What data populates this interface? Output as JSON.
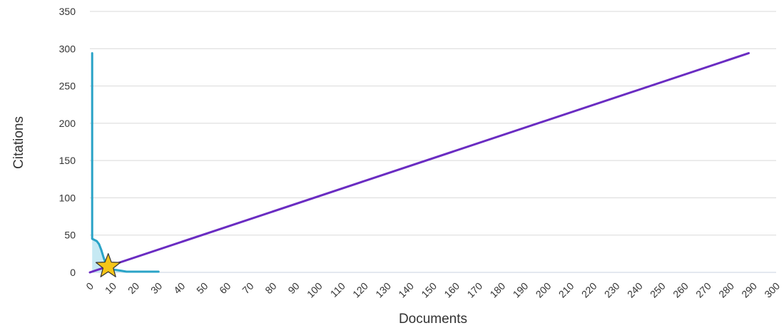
{
  "chart_data": {
    "type": "line",
    "xlabel": "Documents",
    "ylabel": "Citations",
    "xlim": [
      0,
      300
    ],
    "ylim": [
      0,
      350
    ],
    "x_ticks": [
      0,
      10,
      20,
      30,
      40,
      50,
      60,
      70,
      80,
      90,
      100,
      110,
      120,
      130,
      140,
      150,
      160,
      170,
      180,
      190,
      200,
      210,
      220,
      230,
      240,
      250,
      260,
      270,
      280,
      290,
      300
    ],
    "y_ticks": [
      0,
      50,
      100,
      150,
      200,
      250,
      300,
      350
    ],
    "grid": "horizontal",
    "series": [
      {
        "kind": "area-line",
        "color": "#2aa3c7",
        "fill": "#c6e9f3",
        "points": [
          [
            1,
            294
          ],
          [
            1,
            45
          ],
          [
            3,
            42
          ],
          [
            4,
            38
          ],
          [
            5,
            30
          ],
          [
            6,
            20
          ],
          [
            7,
            12
          ],
          [
            8,
            8
          ],
          [
            9,
            6
          ],
          [
            10,
            4
          ],
          [
            12,
            3
          ],
          [
            14,
            2
          ],
          [
            16,
            1
          ],
          [
            20,
            1
          ],
          [
            25,
            1
          ],
          [
            30,
            1
          ]
        ]
      },
      {
        "kind": "line",
        "color": "#6a2cc2",
        "points": [
          [
            0,
            0
          ],
          [
            288,
            294
          ]
        ]
      }
    ],
    "marker": {
      "shape": "star",
      "x": 8,
      "y": 8,
      "color": "#f5c518"
    }
  }
}
